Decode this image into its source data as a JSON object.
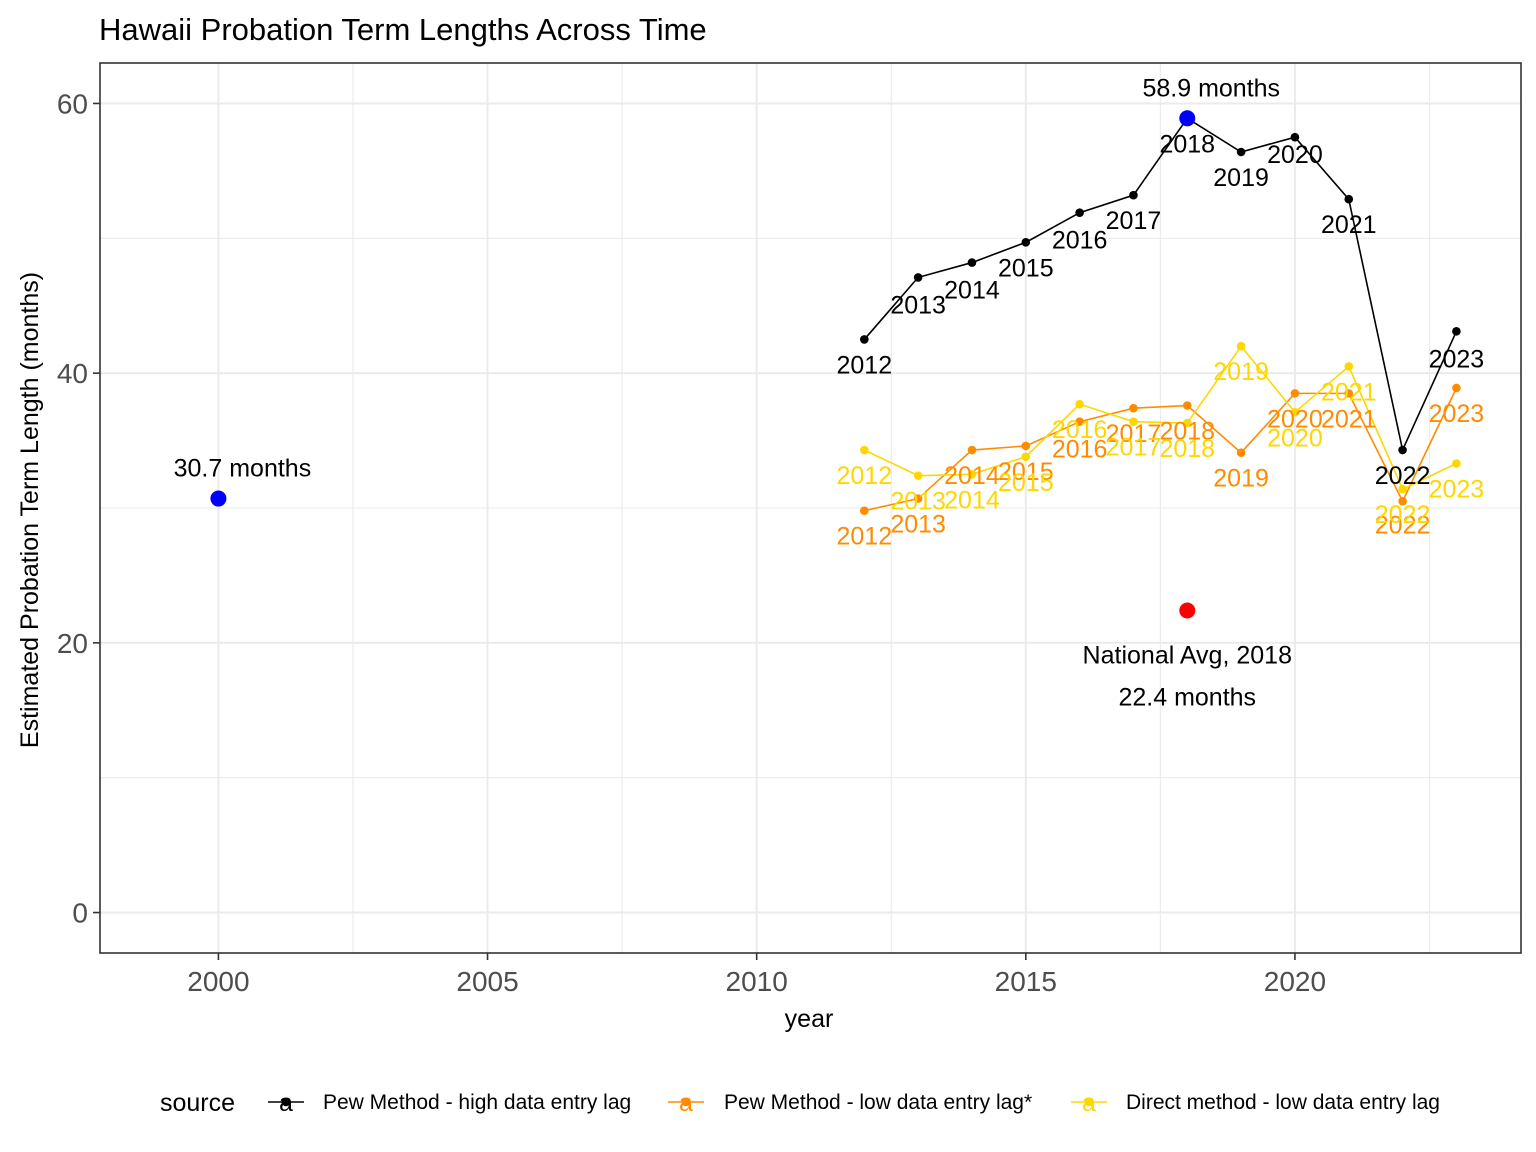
{
  "chart_data": {
    "type": "line",
    "title": "Hawaii Probation Term Lengths Across Time",
    "xlabel": "year",
    "ylabel": "Estimated Probation Term Length (months)",
    "xlim": [
      1997.8,
      2024.2
    ],
    "ylim": [
      -3,
      63
    ],
    "x_ticks": [
      2000,
      2005,
      2010,
      2015,
      2020
    ],
    "y_ticks": [
      0,
      20,
      40,
      60
    ],
    "grid": true,
    "legend_position": "bottom",
    "legend_title": "source",
    "legend_key_letter": "a",
    "series": [
      {
        "name": "Pew Method - high data entry lag",
        "color": "#000000",
        "x": [
          2012,
          2013,
          2014,
          2015,
          2016,
          2017,
          2018,
          2019,
          2020,
          2021,
          2022,
          2023
        ],
        "values": [
          42.5,
          47.1,
          48.2,
          49.7,
          51.9,
          53.2,
          58.9,
          56.4,
          57.5,
          52.9,
          34.3,
          43.1
        ],
        "labels": [
          "2012",
          "2013",
          "2014",
          "2015",
          "2016",
          "2017",
          "2018",
          "2019",
          "2020",
          "2021",
          "2022",
          "2023"
        ]
      },
      {
        "name": "Pew Method - low data entry lag*",
        "color": "#FF8C00",
        "x": [
          2012,
          2013,
          2014,
          2015,
          2016,
          2017,
          2018,
          2019,
          2020,
          2021,
          2022,
          2023
        ],
        "values": [
          29.8,
          30.7,
          34.3,
          34.6,
          36.4,
          37.4,
          37.6,
          34.1,
          38.5,
          38.5,
          30.5,
          38.9
        ],
        "labels": [
          "2012",
          "2013",
          "2014",
          "2015",
          "2016",
          "2017",
          "2018",
          "2019",
          "2020",
          "2021",
          "2022",
          "2023"
        ]
      },
      {
        "name": "Direct method - low data entry lag",
        "color": "#FFD700",
        "x": [
          2012,
          2013,
          2014,
          2015,
          2016,
          2017,
          2018,
          2019,
          2020,
          2021,
          2022,
          2023
        ],
        "values": [
          34.3,
          32.4,
          32.5,
          33.8,
          37.7,
          36.4,
          36.3,
          42.0,
          37.1,
          40.5,
          31.4,
          33.3
        ],
        "labels": [
          "2012",
          "2013",
          "2014",
          "2015",
          "2016",
          "2017",
          "2018",
          "2019",
          "2020",
          "2021",
          "2022",
          "2023"
        ]
      }
    ],
    "highlight_points": [
      {
        "x": 2000,
        "y": 30.7,
        "color": "#0000FF",
        "label": "30.7 months",
        "label_pos": "above"
      },
      {
        "x": 2018,
        "y": 58.9,
        "color": "#0000FF",
        "label": "58.9 months",
        "label_pos": "above"
      },
      {
        "x": 2018,
        "y": 22.4,
        "color": "#FF0000",
        "label": "National Avg, 2018",
        "label2": "22.4 months",
        "label_pos": "below"
      }
    ]
  }
}
